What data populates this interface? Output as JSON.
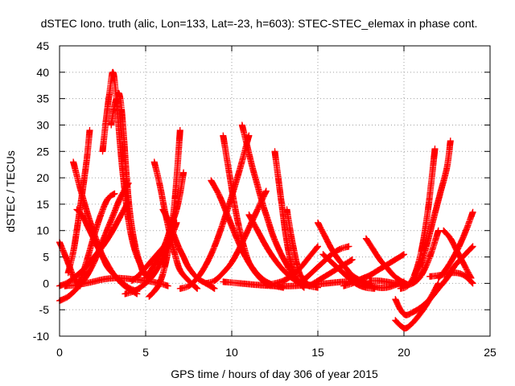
{
  "chart_data": {
    "type": "scatter",
    "title": "dSTEC Iono. truth (alic, Lon=133, Lat=-23, h=603): STEC-STEC_elemax in phase cont.",
    "xlabel": "GPS time / hours of day 306 of year 2015",
    "ylabel": "dSTEC  / TECUs",
    "xlim": [
      0,
      25
    ],
    "ylim": [
      -10,
      45
    ],
    "xticks": [
      "0",
      "5",
      "10",
      "15",
      "20",
      "25"
    ],
    "yticks": [
      "-10",
      "-5",
      "0",
      "5",
      "10",
      "15",
      "20",
      "25",
      "30",
      "35",
      "40",
      "45"
    ],
    "grid": true,
    "marker": "plus",
    "color": "#ff0000",
    "arcs": [
      {
        "x": [
          0.0,
          0.5,
          1.0,
          1.5,
          2.0,
          2.5,
          3.0,
          3.5,
          4.0
        ],
        "y": [
          -3.3,
          -2.5,
          -1.0,
          1.0,
          4.0,
          8.0,
          12.0,
          16.0,
          19.0
        ]
      },
      {
        "x": [
          0.0,
          0.3,
          0.6,
          0.9,
          1.2
        ],
        "y": [
          7.8,
          5.5,
          3.0,
          0.5,
          -0.5
        ]
      },
      {
        "x": [
          0.0,
          0.5,
          1.0,
          1.5,
          2.0,
          2.5,
          3.0,
          3.5,
          4.0
        ],
        "y": [
          -0.5,
          0.2,
          1.5,
          3.0,
          5.0,
          7.0,
          9.5,
          12.5,
          15.5
        ]
      },
      {
        "x": [
          1.0,
          1.3,
          1.6,
          2.0,
          2.4,
          2.8,
          3.2
        ],
        "y": [
          -0.5,
          1.5,
          4.5,
          9.0,
          13.0,
          16.0,
          17.0
        ]
      },
      {
        "x": [
          0.8,
          1.2,
          1.6,
          2.0,
          2.4,
          2.8,
          3.2,
          3.6,
          4.0,
          4.5
        ],
        "y": [
          23.0,
          18.0,
          13.5,
          9.5,
          6.0,
          3.5,
          1.5,
          0.3,
          -0.8,
          -1.5
        ]
      },
      {
        "x": [
          1.0,
          1.3,
          1.6,
          1.9,
          2.2,
          2.5,
          2.8,
          3.2,
          3.6,
          4.0,
          4.5
        ],
        "y": [
          14.0,
          13.0,
          11.0,
          9.0,
          7.0,
          5.0,
          3.0,
          1.5,
          0.0,
          -1.0,
          -2.0
        ]
      },
      {
        "x": [
          0.5,
          0.8,
          1.0,
          1.2,
          1.4,
          1.6,
          1.75
        ],
        "y": [
          2.0,
          6.0,
          10.0,
          14.5,
          19.0,
          24.0,
          29.0
        ]
      },
      {
        "x": [
          2.5,
          2.7,
          2.9,
          3.1,
          3.3,
          3.5,
          3.7,
          4.0,
          4.4,
          5.0
        ],
        "y": [
          25.0,
          31.0,
          36.0,
          40.0,
          35.0,
          27.0,
          20.0,
          12.0,
          6.0,
          1.5
        ]
      },
      {
        "x": [
          3.0,
          3.15,
          3.3,
          3.45,
          3.6,
          3.75,
          3.9,
          4.1,
          4.4,
          4.8
        ],
        "y": [
          30.0,
          33.0,
          35.0,
          36.0,
          33.0,
          27.0,
          20.0,
          13.0,
          7.0,
          2.5
        ]
      },
      {
        "x": [
          0.3,
          1.0,
          1.8,
          2.6,
          3.4,
          4.2,
          5.0,
          5.8,
          6.3
        ],
        "y": [
          -0.5,
          -0.3,
          0.2,
          0.8,
          1.0,
          0.8,
          0.5,
          0.0,
          -0.5
        ]
      },
      {
        "x": [
          4.2,
          4.6,
          5.0,
          5.4,
          5.8,
          6.2
        ],
        "y": [
          0.5,
          1.5,
          3.0,
          4.5,
          6.0,
          7.5
        ]
      },
      {
        "x": [
          5.5,
          5.8,
          6.1,
          6.4,
          6.7,
          7.0,
          7.5,
          8.0
        ],
        "y": [
          23.0,
          19.0,
          14.0,
          9.5,
          5.5,
          2.5,
          0.5,
          -1.0
        ]
      },
      {
        "x": [
          6.0,
          6.3,
          6.6,
          6.9,
          7.2,
          7.5,
          8.0,
          8.5,
          9.0
        ],
        "y": [
          14.0,
          12.0,
          9.5,
          7.0,
          5.0,
          3.0,
          1.0,
          0.0,
          -1.0
        ]
      },
      {
        "x": [
          5.2,
          5.5,
          5.8,
          6.1,
          6.4,
          6.7,
          7.0
        ],
        "y": [
          -2.5,
          -1.5,
          0.0,
          3.0,
          8.0,
          16.0,
          29.0
        ]
      },
      {
        "x": [
          7.2,
          7.0,
          6.8,
          6.6,
          6.4,
          6.2,
          6.0,
          5.5,
          5.0
        ],
        "y": [
          21.0,
          17.0,
          14.0,
          12.0,
          10.0,
          8.0,
          6.5,
          3.5,
          1.0
        ]
      },
      {
        "x": [
          3.8,
          4.3,
          4.8,
          5.3,
          5.8,
          6.3,
          6.8
        ],
        "y": [
          -2.0,
          -1.5,
          -0.5,
          1.0,
          3.5,
          7.0,
          11.5
        ]
      },
      {
        "x": [
          7.0,
          7.5,
          8.0,
          8.5,
          9.0,
          9.5,
          10.0,
          10.5,
          11.0
        ],
        "y": [
          -1.0,
          -0.5,
          1.0,
          3.5,
          7.0,
          11.5,
          16.5,
          22.0,
          28.0
        ]
      },
      {
        "x": [
          8.8,
          9.3,
          9.8,
          10.3,
          10.8,
          11.3,
          11.8,
          12.3
        ],
        "y": [
          19.5,
          16.5,
          12.5,
          8.5,
          5.0,
          2.5,
          0.8,
          -0.2
        ]
      },
      {
        "x": [
          9.5,
          9.8,
          10.1,
          10.4,
          10.7,
          11.0,
          11.5,
          12.0,
          12.5,
          13.0
        ],
        "y": [
          28.0,
          22.0,
          16.0,
          11.0,
          7.0,
          4.0,
          1.5,
          0.0,
          -0.5,
          -0.8
        ]
      },
      {
        "x": [
          10.6,
          10.9,
          11.2,
          11.5,
          11.8,
          12.1,
          12.4,
          12.8,
          13.2,
          13.6
        ],
        "y": [
          30.0,
          26.0,
          22.0,
          18.5,
          15.0,
          12.0,
          9.0,
          6.0,
          3.5,
          1.0
        ]
      },
      {
        "x": [
          12.5,
          12.7,
          12.9,
          13.1,
          13.3,
          13.5,
          13.8,
          14.2
        ],
        "y": [
          25.0,
          20.0,
          15.0,
          10.0,
          6.0,
          3.0,
          0.5,
          -0.8
        ]
      },
      {
        "x": [
          8.5,
          9.0,
          9.5,
          10.0,
          10.5,
          11.0,
          11.5,
          12.0
        ],
        "y": [
          0.0,
          0.5,
          2.0,
          4.0,
          7.0,
          10.5,
          14.0,
          17.5
        ]
      },
      {
        "x": [
          11.0,
          11.5,
          12.0,
          12.5,
          13.0,
          13.5,
          14.0,
          14.5,
          15.0
        ],
        "y": [
          13.0,
          10.0,
          7.0,
          4.5,
          2.5,
          1.0,
          0.0,
          -0.5,
          -0.8
        ]
      },
      {
        "x": [
          13.2,
          13.4,
          13.6,
          13.8,
          14.0,
          14.5
        ],
        "y": [
          14.0,
          10.0,
          6.5,
          3.5,
          1.5,
          -0.5
        ]
      },
      {
        "x": [
          9.5,
          10.5,
          11.5,
          12.5,
          13.5,
          14.5,
          15.5,
          16.5,
          17.5
        ],
        "y": [
          0.3,
          0.0,
          -0.3,
          -0.5,
          -0.5,
          -0.3,
          0.0,
          0.3,
          0.5
        ]
      },
      {
        "x": [
          12.0,
          12.5,
          13.0,
          13.5,
          14.0,
          14.5,
          15.0
        ],
        "y": [
          -0.3,
          0.0,
          0.5,
          1.5,
          3.0,
          5.0,
          7.0
        ]
      },
      {
        "x": [
          15.0,
          15.4,
          15.8,
          16.2,
          16.6,
          17.0,
          17.5,
          18.0
        ],
        "y": [
          11.5,
          9.0,
          6.5,
          4.5,
          3.0,
          1.5,
          0.5,
          -0.3
        ]
      },
      {
        "x": [
          13.8,
          14.3,
          14.8,
          15.3,
          15.8,
          16.3,
          16.8
        ],
        "y": [
          0.0,
          1.0,
          2.5,
          4.0,
          5.5,
          6.5,
          7.0
        ]
      },
      {
        "x": [
          15.3,
          15.8,
          16.3,
          16.8,
          17.3,
          17.8,
          18.3
        ],
        "y": [
          5.5,
          4.0,
          2.5,
          1.0,
          -0.2,
          -0.8,
          -1.0
        ]
      },
      {
        "x": [
          14.5,
          15.0,
          15.5,
          16.0,
          16.5,
          17.0
        ],
        "y": [
          -0.5,
          0.5,
          1.5,
          2.5,
          3.5,
          4.5
        ]
      },
      {
        "x": [
          17.8,
          18.2,
          18.6,
          19.0,
          19.4,
          19.8,
          20.2
        ],
        "y": [
          8.5,
          6.5,
          4.5,
          3.0,
          1.5,
          0.5,
          -0.2
        ]
      },
      {
        "x": [
          16.5,
          17.0,
          17.5,
          18.0,
          18.5,
          19.0,
          19.5,
          20.0
        ],
        "y": [
          -0.5,
          0.0,
          0.8,
          1.5,
          2.5,
          3.5,
          4.5,
          5.5
        ]
      },
      {
        "x": [
          17.5,
          18.0,
          18.5,
          19.0,
          19.5,
          20.0
        ],
        "y": [
          0.5,
          -0.3,
          -0.8,
          -0.8,
          -0.3,
          0.3
        ]
      },
      {
        "x": [
          18.0,
          18.5,
          19.0,
          19.5,
          20.0,
          20.5,
          21.0,
          21.5,
          22.0
        ],
        "y": [
          0.5,
          0.5,
          0.3,
          0.0,
          -0.3,
          0.0,
          1.5,
          5.0,
          10.0
        ]
      },
      {
        "x": [
          19.8,
          20.2,
          20.6,
          21.0,
          21.4,
          21.8
        ],
        "y": [
          -1.0,
          -0.5,
          1.5,
          6.0,
          14.0,
          25.5
        ]
      },
      {
        "x": [
          19.5,
          19.8,
          20.1,
          20.5,
          21.0,
          21.5,
          22.0
        ],
        "y": [
          -7.0,
          -8.0,
          -8.5,
          -7.5,
          -5.5,
          -3.0,
          0.0
        ]
      },
      {
        "x": [
          19.5,
          19.8,
          20.1,
          20.5,
          21.0,
          21.5,
          22.0,
          22.5,
          23.0,
          24.0
        ],
        "y": [
          -3.0,
          -5.0,
          -6.0,
          -5.5,
          -4.5,
          -3.0,
          -1.0,
          1.0,
          3.5,
          7.0
        ]
      },
      {
        "x": [
          20.5,
          20.9,
          21.3,
          21.7,
          22.1,
          22.5,
          22.7
        ],
        "y": [
          0.5,
          3.0,
          7.0,
          12.0,
          17.0,
          22.0,
          27.0
        ]
      },
      {
        "x": [
          21.5,
          22.0,
          22.5,
          23.0,
          23.5,
          24.0
        ],
        "y": [
          1.3,
          1.5,
          1.8,
          2.0,
          1.5,
          0.0
        ]
      },
      {
        "x": [
          22.3,
          22.7,
          23.1,
          23.5,
          23.9
        ],
        "y": [
          10.0,
          8.5,
          6.0,
          3.5,
          1.0
        ]
      },
      {
        "x": [
          22.0,
          22.4,
          22.8,
          23.2,
          23.6,
          24.0
        ],
        "y": [
          1.0,
          2.5,
          4.5,
          7.0,
          10.0,
          13.5
        ]
      }
    ]
  }
}
